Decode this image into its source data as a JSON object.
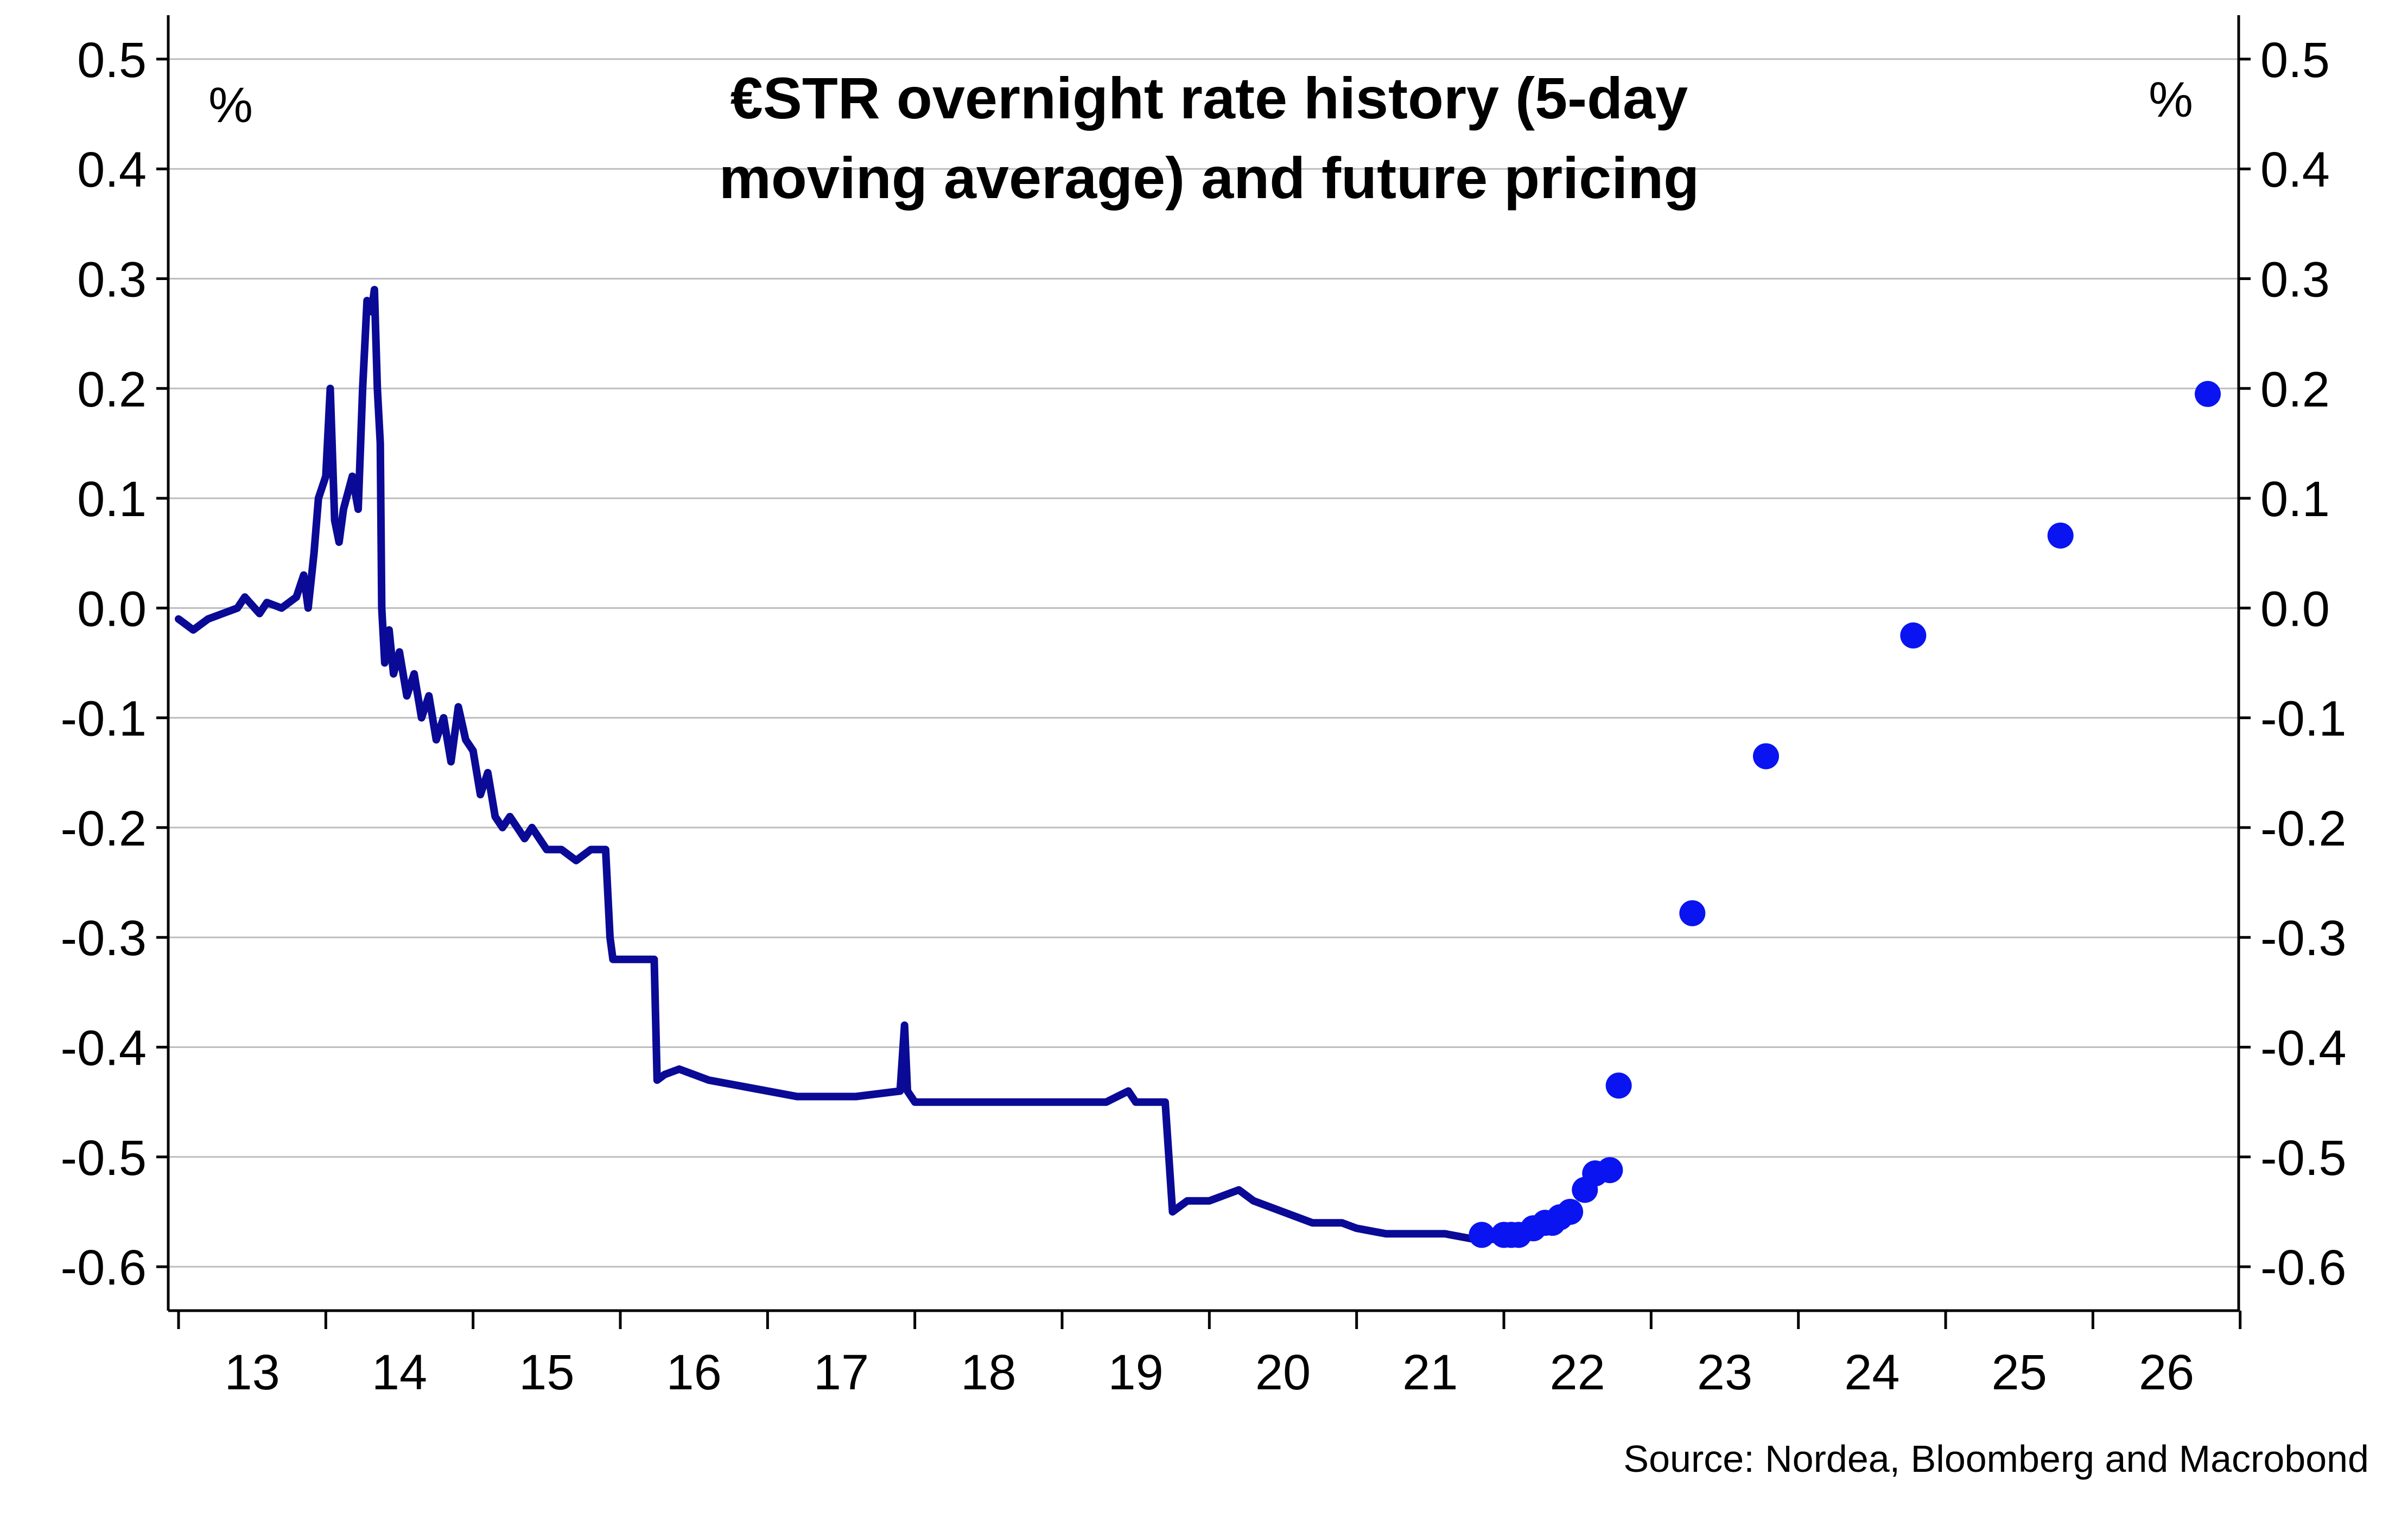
{
  "chart_data": {
    "type": "line",
    "title_lines": [
      "€STR overnight rate history (5-day",
      "moving average) and future pricing"
    ],
    "ylabel_left": "%",
    "ylabel_right": "%",
    "source": "Source: Nordea, Bloomberg and Macrobond",
    "xlim": [
      2012.93,
      2026.99
    ],
    "ylim": [
      -0.64,
      0.54
    ],
    "y_ticks": [
      0.5,
      0.4,
      0.3,
      0.2,
      0.1,
      0.0,
      -0.1,
      -0.2,
      -0.3,
      -0.4,
      -0.5,
      -0.6
    ],
    "y_tick_labels": [
      "0.5",
      "0.4",
      "0.3",
      "0.2",
      "0.1",
      "0.0",
      "-0.1",
      "-0.2",
      "-0.3",
      "-0.4",
      "-0.5",
      "-0.6"
    ],
    "x_ticks": [
      2013,
      2014,
      2015,
      2016,
      2017,
      2018,
      2019,
      2020,
      2021,
      2022,
      2023,
      2024,
      2025,
      2026,
      2027
    ],
    "x_tick_labels": [
      "13",
      "14",
      "15",
      "16",
      "17",
      "18",
      "19",
      "20",
      "21",
      "22",
      "23",
      "24",
      "25",
      "26"
    ],
    "grid": "horizontal",
    "colors": {
      "history": "#0a0a96",
      "pricing": "#0a14f0",
      "grid": "#bdbdbd",
      "axis": "#000000"
    },
    "series": [
      {
        "type": "line",
        "x": [
          2013.0,
          2013.1,
          2013.2,
          2013.3,
          2013.4,
          2013.45,
          2013.55,
          2013.6,
          2013.7,
          2013.8,
          2013.85,
          2013.88,
          2013.92,
          2013.95,
          2014.0,
          2014.03,
          2014.06,
          2014.09,
          2014.12,
          2014.14,
          2014.18,
          2014.22,
          2014.25,
          2014.28,
          2014.31,
          2014.33,
          2014.35,
          2014.37,
          2014.38,
          2014.4,
          2014.43,
          2014.46,
          2014.5,
          2014.55,
          2014.6,
          2014.65,
          2014.7,
          2014.75,
          2014.8,
          2014.85,
          2014.9,
          2014.95,
          2015.0,
          2015.05,
          2015.1,
          2015.15,
          2015.2,
          2015.25,
          2015.3,
          2015.35,
          2015.4,
          2015.45,
          2015.5,
          2015.6,
          2015.7,
          2015.8,
          2015.9,
          2015.93,
          2015.95,
          2016.0,
          2016.1,
          2016.2,
          2016.23,
          2016.25,
          2016.3,
          2016.4,
          2016.5,
          2016.6,
          2016.8,
          2017.0,
          2017.2,
          2017.4,
          2017.6,
          2017.9,
          2017.93,
          2017.95,
          2018.0,
          2018.2,
          2018.5,
          2018.8,
          2019.0,
          2019.3,
          2019.45,
          2019.5,
          2019.7,
          2019.75,
          2019.8,
          2019.85,
          2019.9,
          2020.0,
          2020.2,
          2020.3,
          2020.5,
          2020.7,
          2020.9,
          2021.0,
          2021.2,
          2021.4,
          2021.6,
          2021.8,
          2021.95,
          2022.1
        ],
        "y": [
          -0.01,
          -0.02,
          -0.01,
          -0.005,
          0.0,
          0.01,
          -0.005,
          0.005,
          0.0,
          0.01,
          0.03,
          0.0,
          0.05,
          0.1,
          0.12,
          0.2,
          0.08,
          0.06,
          0.09,
          0.1,
          0.12,
          0.09,
          0.2,
          0.28,
          0.27,
          0.29,
          0.2,
          0.15,
          0.0,
          -0.05,
          -0.02,
          -0.06,
          -0.04,
          -0.08,
          -0.06,
          -0.1,
          -0.08,
          -0.12,
          -0.1,
          -0.14,
          -0.09,
          -0.12,
          -0.13,
          -0.17,
          -0.15,
          -0.19,
          -0.2,
          -0.19,
          -0.2,
          -0.21,
          -0.2,
          -0.21,
          -0.22,
          -0.22,
          -0.23,
          -0.22,
          -0.22,
          -0.3,
          -0.32,
          -0.32,
          -0.32,
          -0.32,
          -0.32,
          -0.43,
          -0.425,
          -0.42,
          -0.425,
          -0.43,
          -0.435,
          -0.44,
          -0.445,
          -0.445,
          -0.445,
          -0.44,
          -0.38,
          -0.44,
          -0.45,
          -0.45,
          -0.45,
          -0.45,
          -0.45,
          -0.45,
          -0.44,
          -0.45,
          -0.45,
          -0.55,
          -0.545,
          -0.54,
          -0.54,
          -0.54,
          -0.53,
          -0.54,
          -0.55,
          -0.56,
          -0.56,
          -0.565,
          -0.57,
          -0.57,
          -0.57,
          -0.575,
          -0.575,
          -0.57
        ]
      },
      {
        "type": "scatter",
        "x": [
          2021.85,
          2022.0,
          2022.05,
          2022.1,
          2022.2,
          2022.28,
          2022.33,
          2022.38,
          2022.45,
          2022.55,
          2022.62,
          2022.72,
          2022.78,
          2023.28,
          2023.78,
          2024.78,
          2025.78,
          2026.78
        ],
        "y": [
          -0.571,
          -0.571,
          -0.571,
          -0.571,
          -0.565,
          -0.56,
          -0.56,
          -0.555,
          -0.55,
          -0.53,
          -0.515,
          -0.512,
          -0.435,
          -0.278,
          -0.135,
          -0.025,
          0.066,
          0.195
        ]
      }
    ]
  }
}
